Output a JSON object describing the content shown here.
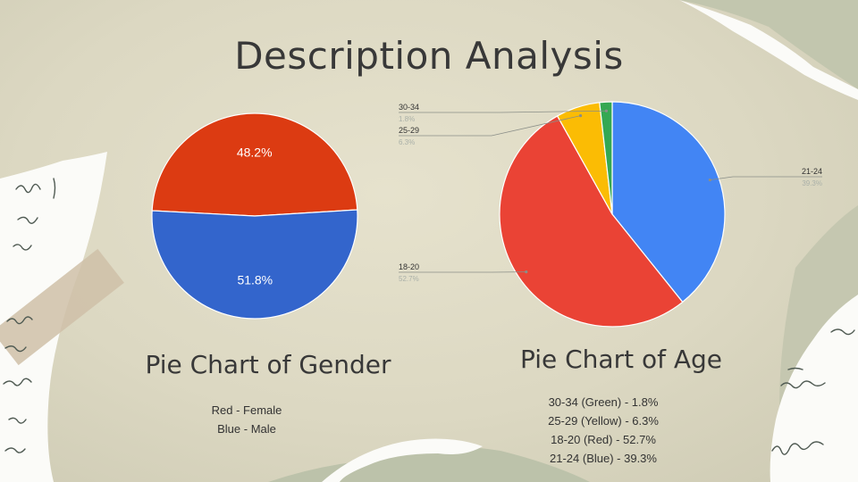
{
  "slide": {
    "title": "Description Analysis"
  },
  "colors": {
    "female_red": "#dc3b12",
    "male_blue": "#3365cc",
    "age_green": "#34a853",
    "age_yellow": "#fbbc04",
    "age_red": "#ea4335",
    "age_blue": "#4285f4"
  },
  "gender": {
    "heading": "Pie Chart of Gender",
    "legend": [
      "Red - Female",
      "Blue - Male"
    ]
  },
  "age": {
    "heading": "Pie Chart of Age",
    "legend": [
      "30-34 (Green) - 1.8%",
      "25-29 (Yellow) - 6.3%",
      "18-20 (Red) - 52.7%",
      "21-24 (Blue) - 39.3%"
    ]
  },
  "chart_data": [
    {
      "type": "pie",
      "title": "Pie Chart of Gender",
      "slices": [
        {
          "label": "Female",
          "value": 48.2,
          "display": "48.2%",
          "color": "#dc3b12"
        },
        {
          "label": "Male",
          "value": 51.8,
          "display": "51.8%",
          "color": "#3365cc"
        }
      ]
    },
    {
      "type": "pie",
      "title": "Pie Chart of Age",
      "slices": [
        {
          "label": "21-24",
          "value": 39.3,
          "display": "39.3%",
          "color": "#4285f4"
        },
        {
          "label": "18-20",
          "value": 52.7,
          "display": "52.7%",
          "color": "#ea4335"
        },
        {
          "label": "25-29",
          "value": 6.3,
          "display": "6.3%",
          "color": "#fbbc04"
        },
        {
          "label": "30-34",
          "value": 1.8,
          "display": "1.8%",
          "color": "#34a853"
        }
      ]
    }
  ]
}
